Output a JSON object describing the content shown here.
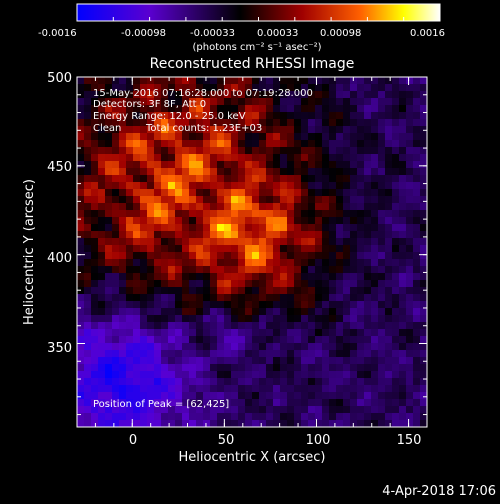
{
  "colorbar": {
    "ticks": [
      "-0.0016",
      "-0.00098",
      "-0.00033",
      "0.00033",
      "0.00098",
      "0.0016"
    ],
    "units": "(photons cm⁻² s⁻¹ asec⁻²)",
    "colors": [
      "#0000ff",
      "#5a00d0",
      "#000000",
      "#a00000",
      "#ff6000",
      "#ffff00",
      "#ffffff"
    ]
  },
  "title": "Reconstructed RHESSI Image",
  "info": {
    "time_range": "15-May-2016 07:16:28.000 to 07:19:28.000",
    "detectors": "Detectors: 3F 8F, Att 0",
    "energy": "Energy Range: 12.0 - 25.0 keV",
    "method": "Clean",
    "counts": "Total counts: 1.23E+03",
    "peak": "Position of Peak = [62,425]"
  },
  "axes": {
    "xlabel": "Heliocentric X (arcsec)",
    "ylabel": "Heliocentric Y (arcsec)",
    "xlim": [
      -30,
      160
    ],
    "ylim": [
      303,
      500
    ],
    "xticks": [
      0,
      50,
      100,
      150
    ],
    "yticks": [
      350,
      400,
      450,
      500
    ],
    "xtick_labels": [
      "0",
      "50",
      "100",
      "150"
    ],
    "ytick_labels": [
      "350",
      "400",
      "450",
      "500"
    ]
  },
  "peak_position": [
    62,
    425
  ],
  "timestamp": "4-Apr-2018 17:06"
}
